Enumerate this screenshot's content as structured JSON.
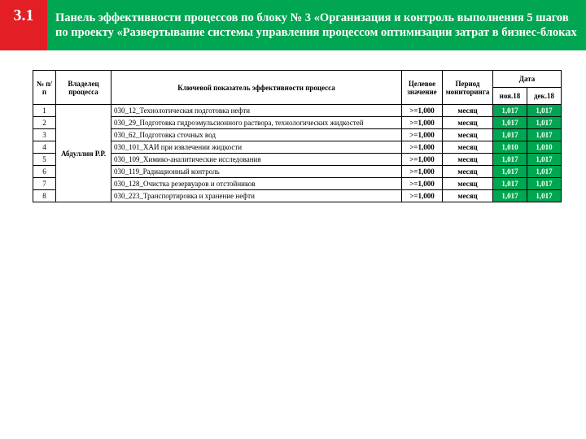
{
  "header": {
    "badge": "3.1",
    "title": "Панель эффективности процессов по блоку № 3 «Организация и контроль выполнения 5 шагов по проекту «Развертывание системы управления процессом оптимизации затрат в бизнес-блоках",
    "badge_bg": "#e31e24",
    "title_bg": "#00a651"
  },
  "table": {
    "columns": {
      "num": "№ п/п",
      "owner": "Владелец процесса",
      "kpi": "Ключевой показатель эффективности процесса",
      "target": "Целевое значение",
      "period": "Период мониторинга",
      "date_group": "Дата",
      "date1": "ноя.18",
      "date2": "дек.18"
    },
    "owner": "Абдуллин Р.Р.",
    "cell_green": "#00a651",
    "rows": [
      {
        "num": "1",
        "kpi": "030_12_Технологическая подготовка нефти",
        "target": ">=1,000",
        "period": "месяц",
        "v1": "1,017",
        "v2": "1,017"
      },
      {
        "num": "2",
        "kpi": "030_29_Подготовка гидроэмульсионного раствора, технологических жидкостей",
        "target": ">=1,000",
        "period": "месяц",
        "v1": "1,017",
        "v2": "1,017"
      },
      {
        "num": "3",
        "kpi": "030_62_Подготовка сточных вод",
        "target": ">=1,000",
        "period": "месяц",
        "v1": "1,017",
        "v2": "1,017"
      },
      {
        "num": "4",
        "kpi": "030_101_ХАИ при извлечении жидкости",
        "target": ">=1,000",
        "period": "месяц",
        "v1": "1,010",
        "v2": "1,010"
      },
      {
        "num": "5",
        "kpi": "030_109_Химико-аналитические исследования",
        "target": ">=1,000",
        "period": "месяц",
        "v1": "1,017",
        "v2": "1,017"
      },
      {
        "num": "6",
        "kpi": "030_119_Радиационный контроль",
        "target": ">=1,000",
        "period": "месяц",
        "v1": "1,017",
        "v2": "1,017"
      },
      {
        "num": "7",
        "kpi": "030_128_Очистка резервуаров и отстойников",
        "target": ">=1,000",
        "period": "месяц",
        "v1": "1,017",
        "v2": "1,017"
      },
      {
        "num": "8",
        "kpi": "030_223_Транспортировка и хранение нефти",
        "target": ">=1,000",
        "period": "месяц",
        "v1": "1,017",
        "v2": "1,017"
      }
    ]
  }
}
